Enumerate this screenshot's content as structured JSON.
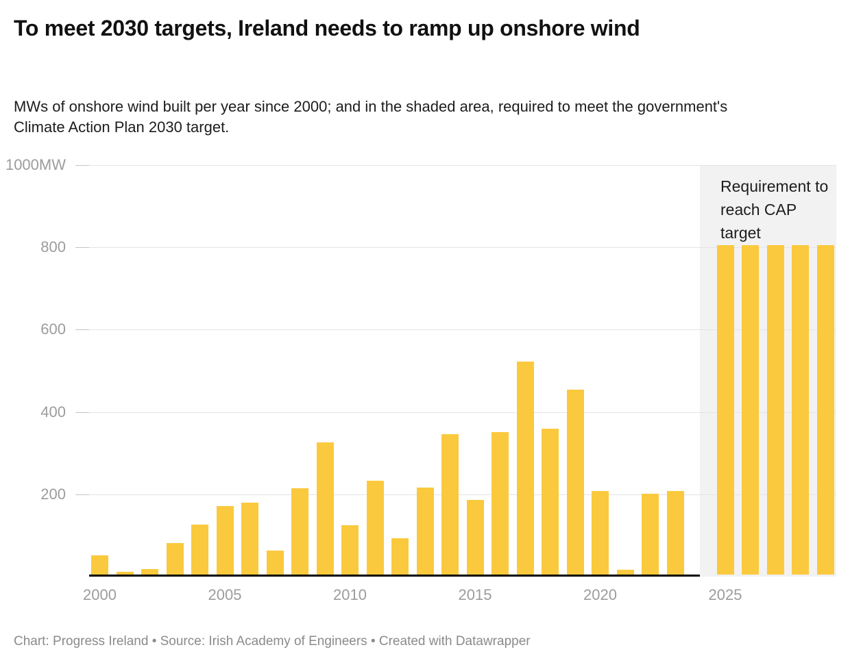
{
  "header": {
    "title": "To meet 2030 targets, Ireland needs to ramp up onshore wind",
    "subtitle": "MWs of onshore wind built per year since 2000; and in the shaded area, required to meet the government's Climate Action Plan 2030 target."
  },
  "chart_data": {
    "type": "bar",
    "title": "To meet 2030 targets, Ireland needs to ramp up onshore wind",
    "unit": "MW",
    "ylim": [
      0,
      1000
    ],
    "grid": true,
    "y_ticks": [
      {
        "value": 1000,
        "label": "1000MW"
      },
      {
        "value": 800,
        "label": "800"
      },
      {
        "value": 600,
        "label": "600"
      },
      {
        "value": 400,
        "label": "400"
      },
      {
        "value": 200,
        "label": "200"
      }
    ],
    "x_ticks": [
      2000,
      2005,
      2010,
      2015,
      2020,
      2025
    ],
    "series": [
      {
        "name": "Onshore wind built per year",
        "points": [
          {
            "year": 2000,
            "mw": 46
          },
          {
            "year": 2001,
            "mw": 7
          },
          {
            "year": 2002,
            "mw": 13
          },
          {
            "year": 2003,
            "mw": 77
          },
          {
            "year": 2004,
            "mw": 122
          },
          {
            "year": 2005,
            "mw": 166
          },
          {
            "year": 2006,
            "mw": 175
          },
          {
            "year": 2007,
            "mw": 58
          },
          {
            "year": 2008,
            "mw": 210
          },
          {
            "year": 2009,
            "mw": 321
          },
          {
            "year": 2010,
            "mw": 120
          },
          {
            "year": 2011,
            "mw": 228
          },
          {
            "year": 2012,
            "mw": 89
          },
          {
            "year": 2013,
            "mw": 212
          },
          {
            "year": 2014,
            "mw": 341
          },
          {
            "year": 2015,
            "mw": 182
          },
          {
            "year": 2016,
            "mw": 346
          },
          {
            "year": 2017,
            "mw": 517
          },
          {
            "year": 2018,
            "mw": 354
          },
          {
            "year": 2019,
            "mw": 450
          },
          {
            "year": 2020,
            "mw": 203
          },
          {
            "year": 2021,
            "mw": 11
          },
          {
            "year": 2022,
            "mw": 196
          },
          {
            "year": 2023,
            "mw": 203
          }
        ]
      },
      {
        "name": "Requirement to reach CAP target",
        "highlighted": true,
        "points": [
          {
            "year": 2025,
            "mw": 800
          },
          {
            "year": 2026,
            "mw": 800
          },
          {
            "year": 2027,
            "mw": 800
          },
          {
            "year": 2028,
            "mw": 800
          },
          {
            "year": 2029,
            "mw": 800
          }
        ]
      }
    ],
    "annotation": "Requirement to reach CAP target",
    "legend_position": "none",
    "colors": {
      "bar": "#FBC93D",
      "highlight_background": "#F2F2F2",
      "gridline": "#E4E4E4",
      "axis_label": "#9C9C9C",
      "baseline": "#000000"
    }
  },
  "footer": {
    "credit": "Chart: Progress Ireland • Source: Irish Academy of Engineers • Created with Datawrapper"
  }
}
